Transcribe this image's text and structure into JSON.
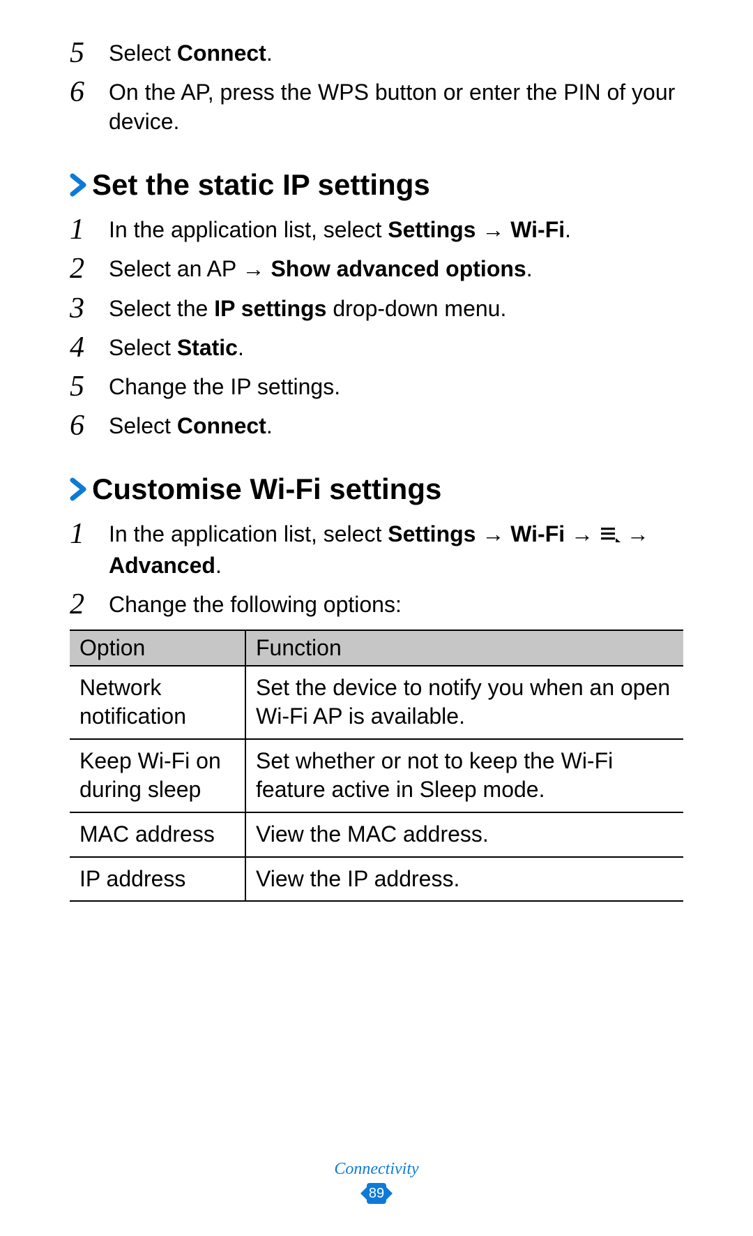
{
  "accent_color": "#0d7bd6",
  "top_steps": [
    {
      "n": "5",
      "html": "Select <b>Connect</b>."
    },
    {
      "n": "6",
      "html": "On the AP, press the WPS button or enter the PIN of your device."
    }
  ],
  "section_static": {
    "title": "Set the static IP settings",
    "steps": [
      {
        "n": "1",
        "html": "In the application list, select <b>Settings</b> → <b>Wi-Fi</b>."
      },
      {
        "n": "2",
        "html": "Select an AP → <b>Show advanced options</b>."
      },
      {
        "n": "3",
        "html": "Select the <b>IP settings</b> drop-down menu."
      },
      {
        "n": "4",
        "html": "Select <b>Static</b>."
      },
      {
        "n": "5",
        "html": "Change the IP settings."
      },
      {
        "n": "6",
        "html": "Select <b>Connect</b>."
      }
    ]
  },
  "section_custom": {
    "title": "Customise Wi-Fi settings",
    "steps": [
      {
        "n": "1",
        "html": "In the application list, select <b>Settings</b> → <b>Wi-Fi</b> → {MENU_ICON} → <b>Advanced</b>."
      },
      {
        "n": "2",
        "html": "Change the following options:"
      }
    ],
    "table": {
      "headers": [
        "Option",
        "Function"
      ],
      "rows": [
        [
          "Network notification",
          "Set the device to notify you when an open Wi-Fi AP is available."
        ],
        [
          "Keep Wi-Fi on during sleep",
          "Set whether or not to keep the Wi-Fi feature active in Sleep mode."
        ],
        [
          "MAC address",
          "View the MAC address."
        ],
        [
          "IP address",
          "View the IP address."
        ]
      ]
    }
  },
  "footer": {
    "section": "Connectivity",
    "page": "89"
  }
}
